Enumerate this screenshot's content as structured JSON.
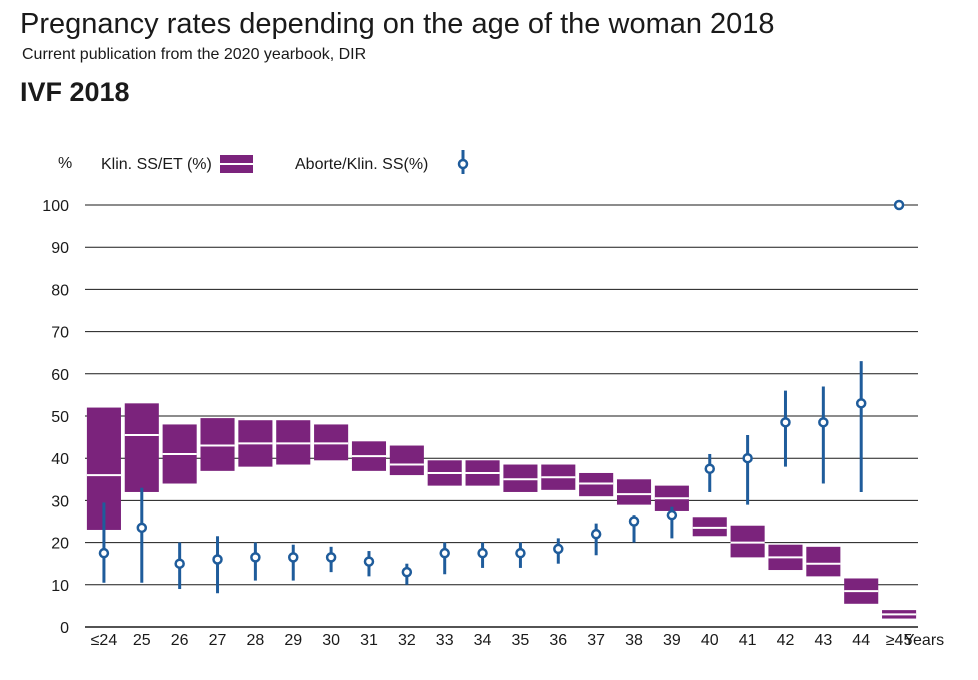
{
  "header": {
    "title": "Pregnancy rates depending on the age of the woman 2018",
    "subtitle": "Current publication from the 2020 yearbook, DIR",
    "heading": "IVF 2018"
  },
  "chart_data": {
    "type": "box-and-interval",
    "ylabel": "%",
    "xlabel": "Years",
    "ylim": [
      0,
      100
    ],
    "yticks": [
      0,
      10,
      20,
      30,
      40,
      50,
      60,
      70,
      80,
      90,
      100
    ],
    "grid": true,
    "legend_position": "top",
    "categories": [
      "≤24",
      "25",
      "26",
      "27",
      "28",
      "29",
      "30",
      "31",
      "32",
      "33",
      "34",
      "35",
      "36",
      "37",
      "38",
      "39",
      "40",
      "41",
      "42",
      "43",
      "44",
      "≥45"
    ],
    "series": [
      {
        "name": "Klin. SS/ET (%)",
        "style": "box",
        "color": "#7b237c",
        "low": [
          23,
          32,
          34,
          37,
          38,
          38.5,
          39.5,
          37,
          36,
          33.5,
          33.5,
          32,
          32.5,
          31,
          29,
          27.5,
          21.5,
          16.5,
          13.5,
          12,
          5.5,
          2
        ],
        "mid": [
          36,
          45.5,
          41,
          43,
          43.5,
          43.5,
          43.5,
          40.5,
          38.5,
          36.5,
          36.5,
          35,
          35.5,
          34,
          31.5,
          30.5,
          23.5,
          20,
          16.5,
          15,
          8.5,
          3
        ],
        "high": [
          52,
          53,
          48,
          49.5,
          49,
          49,
          48,
          44,
          43,
          39.5,
          39.5,
          38.5,
          38.5,
          36.5,
          35,
          33.5,
          26,
          24,
          19.5,
          19,
          11.5,
          4
        ]
      },
      {
        "name": "Aborte/Klin. SS(%)",
        "style": "point-interval",
        "color": "#1f5c9b",
        "values": [
          17.5,
          23.5,
          15,
          16,
          16.5,
          16.5,
          16.5,
          15.5,
          13,
          17.5,
          17.5,
          17.5,
          18.5,
          22,
          25,
          26.5,
          37.5,
          40,
          48.5,
          48.5,
          53,
          100
        ],
        "low": [
          10.5,
          10.5,
          9,
          8,
          11,
          11,
          13,
          12,
          10,
          12.5,
          14,
          14,
          15,
          17,
          20,
          21,
          32,
          29,
          38,
          34,
          32,
          null
        ],
        "high": [
          29.5,
          33,
          20,
          21.5,
          20,
          19.5,
          19,
          18,
          15,
          20,
          20,
          20,
          21,
          24.5,
          26.5,
          28.5,
          41,
          45.5,
          56,
          57,
          63,
          null
        ]
      }
    ]
  },
  "colors": {
    "box": "#7b237c",
    "interval": "#1f5c9b",
    "grid": "#1a1a1a"
  }
}
